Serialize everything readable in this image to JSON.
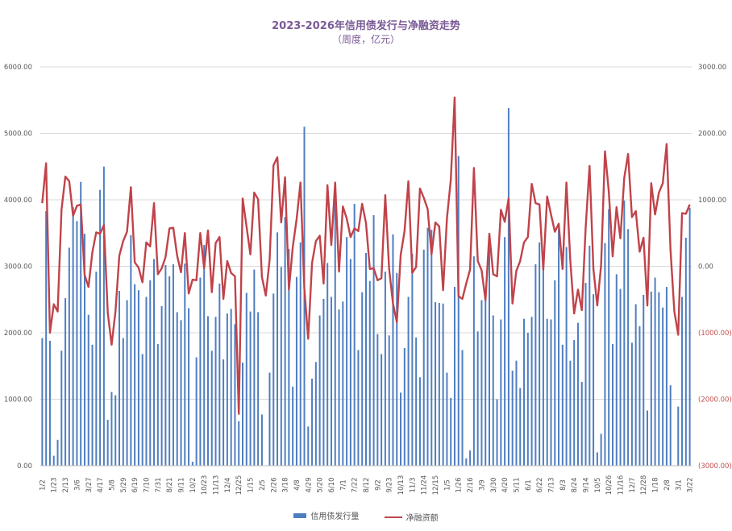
{
  "chart_data": {
    "type": "bar+line",
    "title": "2023-2026年信用债发行与净融资走势",
    "subtitle": "（周度，亿元）",
    "y_left": {
      "min": 0,
      "max": 6000,
      "step": 1000,
      "tick_labels": [
        "0.00",
        "1000.00",
        "2000.00",
        "3000.00",
        "4000.00",
        "5000.00",
        "6000.00"
      ]
    },
    "y_right": {
      "min": -3000,
      "max": 3000,
      "step": 1000,
      "tick_labels": [
        "(3000.00)",
        "(2000.00)",
        "(1000.00)",
        "0.00",
        "1000.00",
        "2000.00",
        "3000.00"
      ]
    },
    "x_tick_labels": [
      "1/2",
      "1/23",
      "2/13",
      "3/6",
      "3/27",
      "4/17",
      "5/8",
      "5/29",
      "6/19",
      "7/10",
      "7/31",
      "8/21",
      "9/11",
      "10/2",
      "10/23",
      "11/13",
      "12/4",
      "12/25",
      "1/15",
      "2/5",
      "2/26",
      "3/18",
      "4/8",
      "4/29",
      "5/20",
      "6/10",
      "7/1",
      "7/22",
      "8/12",
      "9/2",
      "9/23",
      "10/13",
      "11/3",
      "11/24",
      "12/15",
      "1/5",
      "1/26",
      "2/16",
      "3/9",
      "3/30",
      "4/20",
      "5/11",
      "6/1",
      "6/22",
      "7/13",
      "8/3",
      "8/24",
      "9/14",
      "10/5",
      "10/26",
      "11/16",
      "12/7",
      "12/28",
      "1/18",
      "2/8",
      "3/1",
      "3/22"
    ],
    "series": [
      {
        "name": "信用债发行量",
        "type": "bar",
        "axis": "left",
        "color": "#4f7ec0",
        "values": [
          1920,
          3830,
          1880,
          150,
          390,
          1730,
          2520,
          3280,
          3890,
          3680,
          4270,
          3490,
          2270,
          1820,
          2920,
          4150,
          4500,
          690,
          1110,
          1060,
          2630,
          1920,
          2490,
          3470,
          2730,
          2640,
          1680,
          2540,
          2790,
          3110,
          1830,
          2400,
          3020,
          2850,
          3030,
          2310,
          2190,
          3040,
          2370,
          60,
          1630,
          2830,
          3320,
          2250,
          1730,
          2240,
          2740,
          1600,
          2290,
          2360,
          2130,
          670,
          1550,
          2600,
          2320,
          2950,
          2310,
          770,
          0,
          1400,
          2590,
          3510,
          2990,
          3740,
          3260,
          1190,
          2840,
          3360,
          5100,
          590,
          1310,
          1560,
          2260,
          2510,
          3050,
          2540,
          3970,
          2350,
          2470,
          3440,
          3110,
          3940,
          1740,
          2610,
          3200,
          2780,
          3770,
          1980,
          1680,
          2920,
          1960,
          3480,
          2900,
          1100,
          1770,
          2540,
          3190,
          1930,
          1330,
          3250,
          3580,
          3550,
          2460,
          2450,
          2440,
          1400,
          1020,
          2690,
          4660,
          1740,
          110,
          230,
          3150,
          2020,
          2490,
          2580,
          3280,
          2260,
          1000,
          2200,
          3440,
          5380,
          1430,
          1580,
          1170,
          2210,
          2000,
          2240,
          3030,
          3360,
          3000,
          2210,
          2200,
          2790,
          3560,
          1820,
          3290,
          1580,
          1890,
          2150,
          1260,
          2750,
          3310,
          2580,
          200,
          480,
          3350,
          3860,
          1830,
          2880,
          2660,
          3990,
          3560,
          1850,
          2430,
          2100,
          2570,
          830,
          2620,
          2830,
          2610,
          2380,
          2690,
          1210,
          0,
          890,
          2540,
          3430,
          3880
        ]
      },
      {
        "name": "净融资额",
        "type": "line",
        "axis": "right",
        "color": "#c0434a",
        "values": [
          950,
          1550,
          -1000,
          -570,
          -680,
          850,
          1350,
          1280,
          760,
          910,
          930,
          -130,
          -310,
          210,
          510,
          490,
          620,
          -700,
          -1180,
          -680,
          160,
          380,
          520,
          1190,
          60,
          -20,
          -240,
          360,
          300,
          950,
          -120,
          -30,
          140,
          570,
          580,
          160,
          -90,
          500,
          -410,
          -200,
          -210,
          500,
          -30,
          540,
          -390,
          350,
          440,
          -490,
          80,
          -100,
          -150,
          -2220,
          1020,
          600,
          180,
          1110,
          1010,
          -160,
          -440,
          100,
          1520,
          1640,
          660,
          1340,
          -350,
          290,
          710,
          1260,
          -330,
          -1090,
          50,
          380,
          460,
          -260,
          1220,
          320,
          1260,
          -80,
          900,
          720,
          440,
          570,
          530,
          940,
          650,
          -40,
          -30,
          -210,
          -180,
          1070,
          -40,
          -560,
          -840,
          170,
          530,
          1280,
          -100,
          -10,
          1170,
          1030,
          860,
          180,
          660,
          600,
          -360,
          720,
          1300,
          2540,
          -450,
          -490,
          -260,
          -50,
          1480,
          80,
          -60,
          -510,
          490,
          -120,
          -150,
          850,
          670,
          1020,
          -560,
          -70,
          80,
          360,
          440,
          1240,
          950,
          930,
          -50,
          1050,
          780,
          520,
          640,
          -40,
          1260,
          90,
          -710,
          -350,
          -660,
          590,
          1510,
          -40,
          -590,
          20,
          1730,
          1120,
          150,
          890,
          420,
          1330,
          1690,
          740,
          830,
          220,
          430,
          -590,
          1250,
          780,
          1110,
          1250,
          1840,
          250,
          -680,
          -1030,
          800,
          790,
          930
        ]
      }
    ],
    "legend_position": "bottom",
    "grid": "horizontal"
  }
}
